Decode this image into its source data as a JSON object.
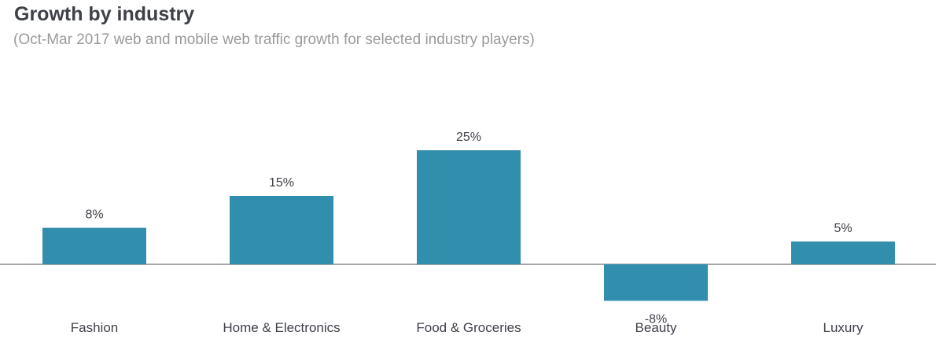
{
  "header": {
    "title": "Growth by industry",
    "subtitle": "(Oct-Mar 2017 web and mobile web traffic growth for selected industry players)"
  },
  "colors": {
    "bar": "#318ead",
    "axis": "#8a8a8a",
    "text": "#3f4149",
    "subtitle": "#9a9a9a"
  },
  "chart_data": {
    "type": "bar",
    "title": "Growth by industry",
    "subtitle": "(Oct-Mar 2017 web and mobile web traffic growth for selected industry players)",
    "categories": [
      "Fashion",
      "Home & Electronics",
      "Food & Groceries",
      "Beauty",
      "Luxury"
    ],
    "values": [
      8,
      15,
      25,
      -8,
      5
    ],
    "data_labels": [
      "8%",
      "15%",
      "25%",
      "-8%",
      "5%"
    ],
    "xlabel": "",
    "ylabel": "",
    "ylim": [
      -8,
      25
    ],
    "grid": false,
    "legend": "none"
  }
}
